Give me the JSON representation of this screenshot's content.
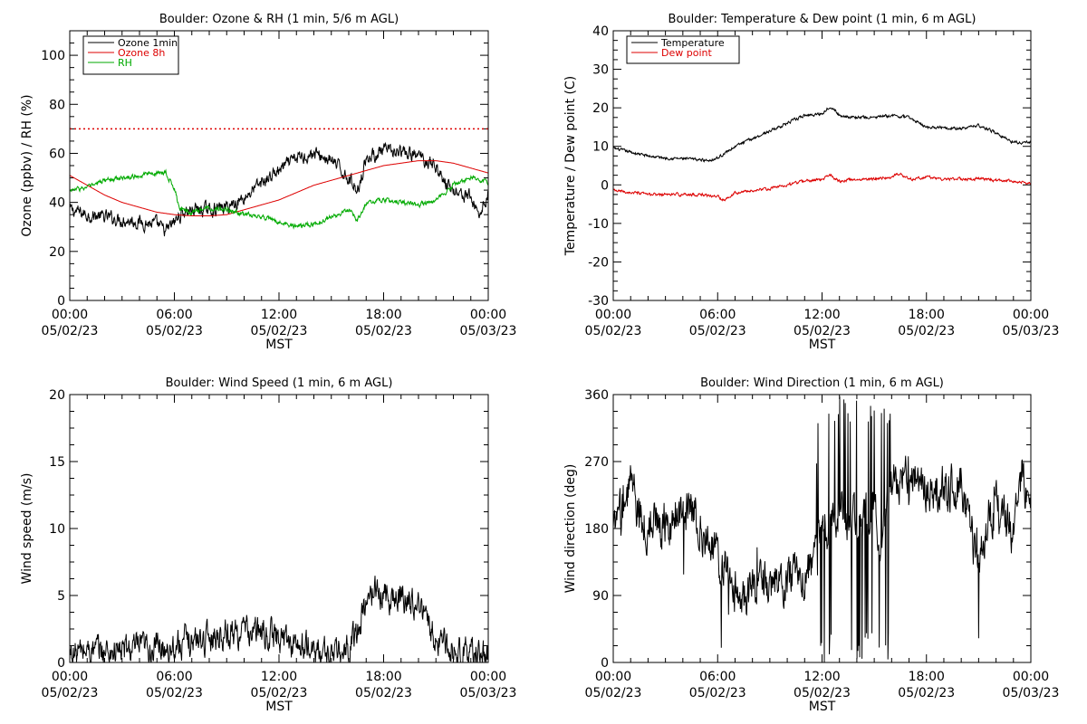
{
  "chart_data": [
    {
      "type": "line",
      "title": "Boulder: Ozone & RH (1 min, 5/6 m AGL)",
      "xlabel": "MST",
      "ylabel": "Ozone (ppbv) / RH (%)",
      "xlim_hours": [
        0,
        24
      ],
      "ylim": [
        0,
        110
      ],
      "yticks": [
        0,
        20,
        40,
        60,
        80,
        100
      ],
      "xticks": [
        {
          "time": "00:00",
          "date": "05/02/23"
        },
        {
          "time": "06:00",
          "date": "05/02/23"
        },
        {
          "time": "12:00",
          "date": "05/02/23"
        },
        {
          "time": "18:00",
          "date": "05/02/23"
        },
        {
          "time": "00:00",
          "date": "05/03/23"
        }
      ],
      "legend_position": "top-left",
      "reference_line": {
        "y": 70,
        "style": "dotted",
        "color": "#dd0000"
      },
      "series": [
        {
          "name": "Ozone 1min",
          "color": "#000000",
          "noise": 2.2,
          "points": [
            [
              0,
              37
            ],
            [
              1,
              35
            ],
            [
              2,
              34
            ],
            [
              3,
              33
            ],
            [
              4,
              32
            ],
            [
              5,
              31
            ],
            [
              5.5,
              28
            ],
            [
              6,
              32
            ],
            [
              6.5,
              36
            ],
            [
              7,
              37
            ],
            [
              8,
              37
            ],
            [
              9,
              38
            ],
            [
              10,
              42
            ],
            [
              11,
              48
            ],
            [
              12,
              53
            ],
            [
              13,
              58
            ],
            [
              14,
              60
            ],
            [
              15,
              57
            ],
            [
              16,
              50
            ],
            [
              16.5,
              45
            ],
            [
              17,
              58
            ],
            [
              18,
              61
            ],
            [
              19,
              60
            ],
            [
              20,
              59
            ],
            [
              21,
              55
            ],
            [
              21.5,
              48
            ],
            [
              22,
              45
            ],
            [
              23,
              42
            ],
            [
              23.5,
              35
            ],
            [
              23.8,
              40
            ],
            [
              24,
              44
            ]
          ]
        },
        {
          "name": "Ozone 8h",
          "color": "#dd0000",
          "noise": 0,
          "points": [
            [
              0,
              51
            ],
            [
              1,
              47
            ],
            [
              2,
              43
            ],
            [
              3,
              40
            ],
            [
              4,
              38
            ],
            [
              5,
              36
            ],
            [
              6,
              35
            ],
            [
              7,
              34.5
            ],
            [
              8,
              34.5
            ],
            [
              9,
              35
            ],
            [
              10,
              37
            ],
            [
              11,
              39
            ],
            [
              12,
              41
            ],
            [
              13,
              44
            ],
            [
              14,
              47
            ],
            [
              15,
              49
            ],
            [
              16,
              51
            ],
            [
              17,
              53
            ],
            [
              18,
              55
            ],
            [
              19,
              56
            ],
            [
              20,
              57
            ],
            [
              21,
              57
            ],
            [
              22,
              56
            ],
            [
              23,
              54
            ],
            [
              24,
              52
            ]
          ]
        },
        {
          "name": "RH",
          "color": "#00aa00",
          "noise": 0.8,
          "points": [
            [
              0,
              45
            ],
            [
              1,
              46
            ],
            [
              2,
              49
            ],
            [
              3,
              50
            ],
            [
              4,
              51
            ],
            [
              5,
              52
            ],
            [
              5.5,
              52
            ],
            [
              6,
              46
            ],
            [
              6.3,
              37
            ],
            [
              7,
              36
            ],
            [
              8,
              38
            ],
            [
              9,
              37
            ],
            [
              10,
              35
            ],
            [
              11,
              34
            ],
            [
              12,
              32
            ],
            [
              13,
              30
            ],
            [
              14,
              31
            ],
            [
              15,
              34
            ],
            [
              16,
              37
            ],
            [
              16.5,
              33
            ],
            [
              17,
              40
            ],
            [
              18,
              41
            ],
            [
              19,
              40
            ],
            [
              20,
              39
            ],
            [
              21,
              41
            ],
            [
              22,
              47
            ],
            [
              23,
              50
            ],
            [
              24,
              48
            ]
          ]
        }
      ]
    },
    {
      "type": "line",
      "title": "Boulder: Temperature & Dew point (1 min, 6 m AGL)",
      "xlabel": "MST",
      "ylabel": "Temperature / Dew point (C)",
      "xlim_hours": [
        0,
        24
      ],
      "ylim": [
        -30,
        40
      ],
      "yticks": [
        -30,
        -20,
        -10,
        0,
        10,
        20,
        30,
        40
      ],
      "xticks": [
        {
          "time": "00:00",
          "date": "05/02/23"
        },
        {
          "time": "06:00",
          "date": "05/02/23"
        },
        {
          "time": "12:00",
          "date": "05/02/23"
        },
        {
          "time": "18:00",
          "date": "05/02/23"
        },
        {
          "time": "00:00",
          "date": "05/03/23"
        }
      ],
      "legend_position": "top-left",
      "series": [
        {
          "name": "Temperature",
          "color": "#000000",
          "noise": 0.3,
          "points": [
            [
              0,
              9.5
            ],
            [
              1,
              8.5
            ],
            [
              2,
              7.5
            ],
            [
              3,
              7
            ],
            [
              4,
              6.8
            ],
            [
              5,
              6.5
            ],
            [
              5.5,
              6.4
            ],
            [
              6,
              7
            ],
            [
              7,
              10
            ],
            [
              8,
              12
            ],
            [
              9,
              14
            ],
            [
              10,
              16
            ],
            [
              11,
              18
            ],
            [
              12,
              18.5
            ],
            [
              12.5,
              20.5
            ],
            [
              13,
              18
            ],
            [
              14,
              17.5
            ],
            [
              15,
              17.5
            ],
            [
              16,
              18
            ],
            [
              17,
              17.5
            ],
            [
              18,
              15
            ],
            [
              19,
              15
            ],
            [
              20,
              14.5
            ],
            [
              21,
              15.5
            ],
            [
              22,
              13.5
            ],
            [
              23,
              11
            ],
            [
              24,
              11
            ]
          ]
        },
        {
          "name": "Dew point",
          "color": "#dd0000",
          "noise": 0.3,
          "points": [
            [
              0,
              -1.5
            ],
            [
              1,
              -2
            ],
            [
              2,
              -2.5
            ],
            [
              3,
              -2.5
            ],
            [
              4,
              -2.5
            ],
            [
              5,
              -2.5
            ],
            [
              6,
              -3
            ],
            [
              6.3,
              -4
            ],
            [
              7,
              -2
            ],
            [
              8,
              -1.5
            ],
            [
              9,
              -1
            ],
            [
              10,
              0
            ],
            [
              11,
              1
            ],
            [
              12,
              1.5
            ],
            [
              12.5,
              2.5
            ],
            [
              13,
              1
            ],
            [
              14,
              1.5
            ],
            [
              15,
              1.5
            ],
            [
              16,
              2
            ],
            [
              16.5,
              3
            ],
            [
              17,
              1.5
            ],
            [
              18,
              2
            ],
            [
              19,
              1.5
            ],
            [
              20,
              1.5
            ],
            [
              21,
              1.5
            ],
            [
              22,
              1.2
            ],
            [
              23,
              1
            ],
            [
              24,
              0.5
            ]
          ]
        }
      ]
    },
    {
      "type": "line",
      "title": "Boulder: Wind Speed (1 min, 6 m AGL)",
      "xlabel": "MST",
      "ylabel": "Wind speed (m/s)",
      "xlim_hours": [
        0,
        24
      ],
      "ylim": [
        0,
        20
      ],
      "yticks": [
        0,
        5,
        10,
        15,
        20
      ],
      "xticks": [
        {
          "time": "00:00",
          "date": "05/02/23"
        },
        {
          "time": "06:00",
          "date": "05/02/23"
        },
        {
          "time": "12:00",
          "date": "05/02/23"
        },
        {
          "time": "18:00",
          "date": "05/02/23"
        },
        {
          "time": "00:00",
          "date": "05/03/23"
        }
      ],
      "series": [
        {
          "name": "",
          "color": "#000000",
          "noise": 0.9,
          "floor": 0,
          "points": [
            [
              0,
              0.6
            ],
            [
              1,
              0.9
            ],
            [
              2,
              0.8
            ],
            [
              3,
              0.9
            ],
            [
              4,
              1
            ],
            [
              5,
              1.1
            ],
            [
              6,
              1.3
            ],
            [
              7,
              1.6
            ],
            [
              8,
              1.9
            ],
            [
              9,
              2.2
            ],
            [
              10,
              2.3
            ],
            [
              11,
              2.2
            ],
            [
              12,
              1.9
            ],
            [
              13,
              1.3
            ],
            [
              14,
              0.9
            ],
            [
              15,
              0.6
            ],
            [
              15.5,
              0.5
            ],
            [
              16,
              1
            ],
            [
              16.5,
              2.5
            ],
            [
              17,
              4.5
            ],
            [
              17.5,
              5.5
            ],
            [
              18,
              5
            ],
            [
              19,
              4.8
            ],
            [
              20,
              4.5
            ],
            [
              20.5,
              3
            ],
            [
              21,
              1.8
            ],
            [
              22,
              1
            ],
            [
              23,
              0.6
            ],
            [
              24,
              0.5
            ]
          ]
        }
      ]
    },
    {
      "type": "line",
      "title": "Boulder: Wind Direction (1 min, 6 m AGL)",
      "xlabel": "MST",
      "ylabel": "Wind direction (deg)",
      "xlim_hours": [
        0,
        24
      ],
      "ylim": [
        0,
        360
      ],
      "yticks": [
        0,
        90,
        180,
        270,
        360
      ],
      "xticks": [
        {
          "time": "00:00",
          "date": "05/02/23"
        },
        {
          "time": "06:00",
          "date": "05/02/23"
        },
        {
          "time": "12:00",
          "date": "05/02/23"
        },
        {
          "time": "18:00",
          "date": "05/02/23"
        },
        {
          "time": "00:00",
          "date": "05/03/23"
        }
      ],
      "series": [
        {
          "name": "",
          "color": "#000000",
          "noise": 25,
          "floor": 0,
          "ceil": 360,
          "points": [
            [
              0,
              170
            ],
            [
              0.5,
              200
            ],
            [
              1,
              250
            ],
            [
              1.5,
              190
            ],
            [
              2,
              185
            ],
            [
              3,
              190
            ],
            [
              4,
              195
            ],
            [
              4.5,
              205
            ],
            [
              5,
              185
            ],
            [
              5.5,
              160
            ],
            [
              6,
              140
            ],
            [
              6.5,
              120
            ],
            [
              7,
              95
            ],
            [
              7.5,
              80
            ],
            [
              8,
              100
            ],
            [
              9,
              110
            ],
            [
              10,
              115
            ],
            [
              11,
              120
            ],
            [
              11.5,
              140
            ],
            [
              12,
              180
            ],
            [
              13,
              200
            ],
            [
              14,
              190
            ],
            [
              15,
              200
            ],
            [
              15.5,
              170
            ],
            [
              16,
              240
            ],
            [
              17,
              245
            ],
            [
              18,
              240
            ],
            [
              19,
              235
            ],
            [
              20,
              240
            ],
            [
              20.5,
              180
            ],
            [
              21,
              130
            ],
            [
              21.5,
              190
            ],
            [
              22,
              200
            ],
            [
              23,
              180
            ],
            [
              23.5,
              250
            ],
            [
              24,
              210
            ]
          ]
        }
      ]
    }
  ]
}
